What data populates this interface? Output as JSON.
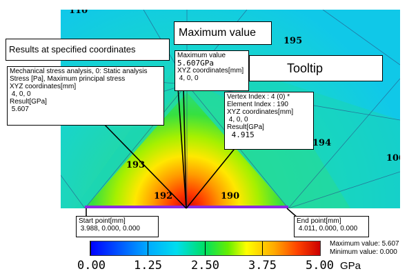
{
  "callouts": {
    "results_label": "Results at specified coordinates",
    "maximum_label": "Maximum value",
    "tooltip_label": "Tooltip"
  },
  "element_labels": [
    "110",
    "195",
    "193",
    "194",
    "192",
    "190",
    "100"
  ],
  "result_box": {
    "line1": "Mechanical stress analysis, 0: Static analysis",
    "line2": "Stress [Pa], Maximum principal stress",
    "line3": "XYZ coordinates[mm]",
    "line4": " 4, 0, 0",
    "line5": "Result[GPa]",
    "line6": " 5.607"
  },
  "max_box": {
    "line1": "Maximum value",
    "line2": "5.607GPa",
    "line3": "XYZ coordinates[mm]",
    "line4": " 4, 0, 0"
  },
  "tooltip_box": {
    "line1": "Vertex Index : 4 (0) *",
    "line2": "Element Index : 190",
    "line3": "XYZ coordinates[mm]",
    "line4": " 4, 0, 0",
    "line5": "Result[GPa]",
    "line6": " 4.915"
  },
  "start_box": {
    "label": "Start point[mm]",
    "value": " 3.988, 0.000, 0.000"
  },
  "end_box": {
    "label": "End point[mm]",
    "value": " 4.011, 0.000, 0.000"
  },
  "colorbar": {
    "ticks": [
      "0.00",
      "1.25",
      "2.50",
      "3.75",
      "5.00"
    ],
    "unit": "GPa",
    "max_label": "Maximum value: 5.607",
    "min_label": "Minimum value: 0.000"
  }
}
